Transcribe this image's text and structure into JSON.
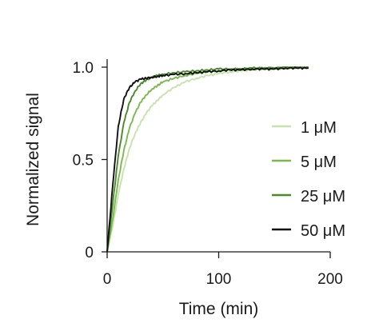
{
  "chart_data": {
    "type": "line",
    "xlabel": "Time (min)",
    "ylabel": "Normalized signal",
    "xlim": [
      0,
      200
    ],
    "ylim": [
      0,
      1.0
    ],
    "x_ticks": [
      0,
      100,
      200
    ],
    "y_ticks": [
      0,
      0.5,
      1.0
    ],
    "x_tick_labels": [
      "0",
      "100",
      "200"
    ],
    "y_tick_labels": [
      "0",
      "0.5",
      "1.0"
    ],
    "grid": false,
    "legend_position": "right",
    "x": [
      0,
      5,
      10,
      15,
      20,
      25,
      30,
      35,
      40,
      45,
      50,
      60,
      70,
      80,
      90,
      100,
      110,
      120,
      130,
      140,
      150,
      160,
      170,
      180
    ],
    "series": [
      {
        "name": "1 μM",
        "color": "#c8e2ad",
        "values": [
          0.0,
          0.14,
          0.31,
          0.45,
          0.56,
          0.64,
          0.7,
          0.75,
          0.79,
          0.82,
          0.85,
          0.89,
          0.92,
          0.94,
          0.955,
          0.965,
          0.975,
          0.98,
          0.985,
          0.99,
          0.99,
          0.995,
          0.995,
          1.0
        ]
      },
      {
        "name": "5 μM",
        "color": "#7bb84f",
        "values": [
          0.0,
          0.18,
          0.39,
          0.55,
          0.67,
          0.75,
          0.81,
          0.85,
          0.88,
          0.9,
          0.92,
          0.94,
          0.955,
          0.965,
          0.975,
          0.98,
          0.985,
          0.99,
          0.99,
          0.995,
          0.995,
          1.0,
          1.0,
          1.0
        ]
      },
      {
        "name": "25 μM",
        "color": "#4a8a2a",
        "values": [
          0.0,
          0.26,
          0.52,
          0.7,
          0.81,
          0.87,
          0.91,
          0.93,
          0.945,
          0.955,
          0.96,
          0.97,
          0.975,
          0.98,
          0.985,
          0.99,
          0.99,
          0.99,
          0.995,
          0.995,
          0.995,
          1.0,
          1.0,
          1.0
        ]
      },
      {
        "name": "50 μM",
        "color": "#111111",
        "values": [
          0.0,
          0.36,
          0.68,
          0.83,
          0.89,
          0.92,
          0.935,
          0.94,
          0.945,
          0.95,
          0.955,
          0.96,
          0.965,
          0.97,
          0.975,
          0.98,
          0.985,
          0.985,
          0.99,
          0.99,
          0.99,
          0.995,
          0.995,
          0.995
        ]
      }
    ]
  }
}
